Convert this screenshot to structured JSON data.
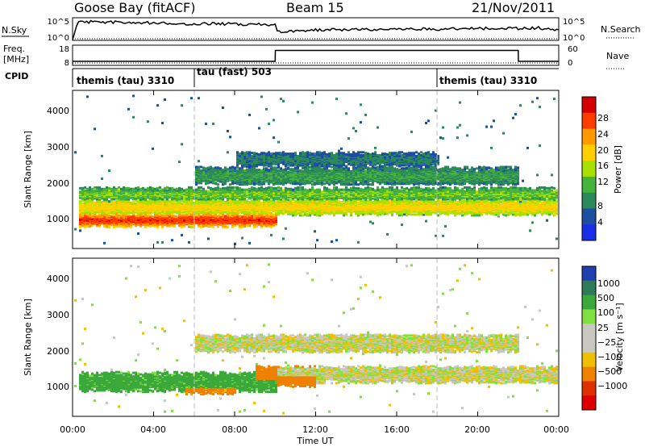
{
  "header": {
    "title_left": "Goose Bay (fitACF)",
    "title_center": "Beam 15",
    "title_right": "21/Nov/2011"
  },
  "nsky_panel": {
    "left_label": "N.Sky",
    "left_ticks": [
      "10^5",
      "10^0"
    ],
    "right_ticks": [
      "10^5",
      "10^0"
    ],
    "right_label": "N.Search"
  },
  "freq_panel": {
    "left_label_top": "Freq.",
    "left_label_bottom": "[MHz]",
    "left_ticks": [
      "18",
      "8"
    ],
    "right_ticks": [
      "60",
      "0"
    ],
    "right_label": "Nave"
  },
  "cpid_panel": {
    "label": "CPID",
    "segments": [
      {
        "name": "themis (tau) 3310",
        "start_hour": 0,
        "end_hour": 6
      },
      {
        "name": "tau (fast) 503",
        "start_hour": 6,
        "end_hour": 18
      },
      {
        "name": "themis (tau) 3310",
        "start_hour": 18,
        "end_hour": 24
      }
    ]
  },
  "power_colorbar": {
    "label": "Power [dB]",
    "ticks": [
      "28",
      "24",
      "20",
      "16",
      "12",
      "8",
      "4"
    ],
    "colors": [
      "#d40000",
      "#ff3c00",
      "#ff9900",
      "#ffd000",
      "#a8e000",
      "#46b43c",
      "#2c8a5a",
      "#1d4fa0",
      "#1a2de6"
    ]
  },
  "velocity_colorbar": {
    "label": "Velocity [m s⁻¹]",
    "ticks": [
      "1000",
      "500",
      "100",
      "25",
      "−25",
      "−100",
      "−500",
      "−1000"
    ],
    "colors": [
      "#1f3fb0",
      "#2e7a5a",
      "#3aa83a",
      "#80e040",
      "#c8c8c0",
      "#c8c8c0",
      "#f0c000",
      "#f08000",
      "#e03000",
      "#dc0000"
    ]
  },
  "x_axis": {
    "title": "Time UT",
    "ticks": [
      "00:00",
      "04:00",
      "08:00",
      "12:00",
      "16:00",
      "20:00",
      "00:00"
    ]
  },
  "y_axis": {
    "title": "Slant Range [km]",
    "ticks": [
      "1000",
      "2000",
      "3000",
      "4000"
    ]
  },
  "chart_data": [
    {
      "type": "line",
      "panel": "N.Sky",
      "x_hours": [
        0,
        0.25,
        1,
        2,
        3,
        4,
        5,
        6,
        7,
        8,
        9,
        10,
        10.01,
        11,
        12,
        13,
        14,
        15,
        16,
        17,
        18,
        19,
        20,
        21,
        22,
        23,
        24
      ],
      "sky_noise_fraction": [
        0.02,
        0.8,
        0.82,
        0.8,
        0.78,
        0.77,
        0.74,
        0.73,
        0.74,
        0.72,
        0.7,
        0.7,
        0.38,
        0.42,
        0.45,
        0.47,
        0.48,
        0.47,
        0.49,
        0.5,
        0.5,
        0.52,
        0.52,
        0.54,
        0.53,
        0.55,
        0.45
      ]
    },
    {
      "type": "line",
      "panel": "Freq",
      "ylim": [
        8,
        18
      ],
      "x_hours": [
        0,
        10,
        10.01,
        22,
        22.01,
        24
      ],
      "freq_mhz": [
        10.0,
        10.0,
        15.4,
        15.4,
        10.0,
        10.0
      ]
    },
    {
      "type": "heatmap",
      "panel": "Power",
      "xlim_hours": [
        0,
        24
      ],
      "ylim_km": [
        180,
        4500
      ],
      "bands": [
        {
          "start_hour": 0.3,
          "end_hour": 10,
          "range_center_km": 1000,
          "half_width_km": 170,
          "peak_db": 27
        },
        {
          "start_hour": 0.3,
          "end_hour": 24,
          "range_center_km": 1350,
          "half_width_km": 200,
          "peak_db": 18
        },
        {
          "start_hour": 0.3,
          "end_hour": 24,
          "range_center_km": 1700,
          "half_width_km": 160,
          "peak_db": 12
        },
        {
          "start_hour": 6,
          "end_hour": 22,
          "range_center_km": 2200,
          "half_width_km": 220,
          "peak_db": 9
        },
        {
          "start_hour": 8,
          "end_hour": 18,
          "range_center_km": 2650,
          "half_width_km": 170,
          "peak_db": 7
        }
      ]
    },
    {
      "type": "heatmap",
      "panel": "Velocity",
      "xlim_hours": [
        0,
        24
      ],
      "ylim_km": [
        180,
        4500
      ],
      "bands": [
        {
          "start_hour": 0.3,
          "end_hour": 10,
          "range_center_km": 1150,
          "half_width_km": 230,
          "velocity_ms": 150
        },
        {
          "start_hour": 10,
          "end_hour": 24,
          "range_center_km": 1350,
          "half_width_km": 200,
          "velocity_ms": 0
        },
        {
          "start_hour": 6,
          "end_hour": 22,
          "range_center_km": 2200,
          "half_width_km": 220,
          "velocity_ms": 0
        },
        {
          "start_hour": 9,
          "end_hour": 12,
          "range_center_km": 1300,
          "half_width_km": 250,
          "velocity_ms": -200
        },
        {
          "start_hour": 5.5,
          "end_hour": 8,
          "range_center_km": 950,
          "half_width_km": 120,
          "velocity_ms": -150
        }
      ]
    }
  ]
}
